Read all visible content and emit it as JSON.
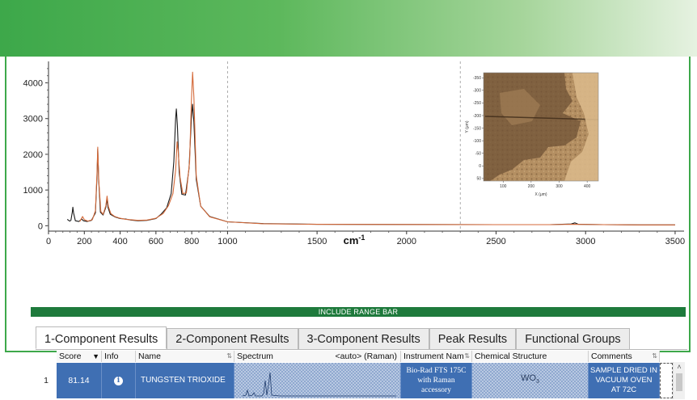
{
  "range_bar_label": "INCLUDE RANGE BAR",
  "tabs": [
    {
      "label": "1-Component Results",
      "active": true
    },
    {
      "label": "2-Component Results",
      "active": false
    },
    {
      "label": "3-Component Results",
      "active": false
    },
    {
      "label": "Peak Results",
      "active": false
    },
    {
      "label": "Functional Groups",
      "active": false
    }
  ],
  "grid": {
    "headers": {
      "score": "Score",
      "info": "Info",
      "name": "Name",
      "spectrum": "Spectrum",
      "spectrum_mode": "<auto> (Raman)",
      "instrument": "Instrument Nam",
      "structure": "Chemical Structure",
      "comments": "Comments"
    },
    "row": {
      "index": "1",
      "score": "81.14",
      "info_glyph": "i",
      "name": "TUNGSTEN TRIOXIDE",
      "instrument_l1": "Bio-Rad FTS 175C",
      "instrument_l2": "with Raman",
      "instrument_l3": "accessory",
      "structure_main": "WO",
      "structure_sub": "3",
      "comments_l1": "SAMPLE DRIED IN",
      "comments_l2": "VACUUM OVEN",
      "comments_l3": "AT 72C"
    }
  },
  "chart_data": {
    "type": "line",
    "xlabel": "cm",
    "xlabel_superscript": "-1",
    "xlim": [
      0,
      3550
    ],
    "ylim": [
      -150,
      4600
    ],
    "x_ticks": [
      0,
      200,
      400,
      600,
      800,
      1000,
      1500,
      2000,
      2500,
      3000,
      3500
    ],
    "y_ticks": [
      0,
      1000,
      2000,
      3000,
      4000
    ],
    "markers_x": [
      1000,
      2300
    ],
    "series": [
      {
        "color": "#1a1a1a",
        "points": [
          [
            105,
            180
          ],
          [
            118,
            130
          ],
          [
            125,
            150
          ],
          [
            133,
            380
          ],
          [
            136,
            520
          ],
          [
            140,
            360
          ],
          [
            150,
            140
          ],
          [
            170,
            120
          ],
          [
            185,
            190
          ],
          [
            195,
            140
          ],
          [
            215,
            120
          ],
          [
            240,
            150
          ],
          [
            262,
            360
          ],
          [
            271,
            1400
          ],
          [
            275,
            2150
          ],
          [
            280,
            1300
          ],
          [
            290,
            380
          ],
          [
            305,
            300
          ],
          [
            320,
            520
          ],
          [
            326,
            760
          ],
          [
            332,
            520
          ],
          [
            345,
            320
          ],
          [
            370,
            250
          ],
          [
            400,
            200
          ],
          [
            430,
            190
          ],
          [
            460,
            160
          ],
          [
            500,
            140
          ],
          [
            550,
            150
          ],
          [
            600,
            200
          ],
          [
            630,
            330
          ],
          [
            660,
            500
          ],
          [
            685,
            900
          ],
          [
            700,
            1800
          ],
          [
            710,
            3000
          ],
          [
            714,
            3270
          ],
          [
            720,
            2800
          ],
          [
            730,
            1500
          ],
          [
            745,
            880
          ],
          [
            765,
            860
          ],
          [
            785,
            1600
          ],
          [
            798,
            3000
          ],
          [
            805,
            3400
          ],
          [
            812,
            2900
          ],
          [
            825,
            1300
          ],
          [
            850,
            550
          ],
          [
            900,
            260
          ],
          [
            1000,
            110
          ],
          [
            1200,
            60
          ],
          [
            1500,
            40
          ],
          [
            2000,
            35
          ],
          [
            2500,
            30
          ],
          [
            2800,
            30
          ],
          [
            2920,
            50
          ],
          [
            2940,
            80
          ],
          [
            2960,
            40
          ],
          [
            3100,
            30
          ],
          [
            3300,
            25
          ],
          [
            3500,
            25
          ]
        ]
      },
      {
        "color": "#d46a3a",
        "points": [
          [
            175,
            120
          ],
          [
            190,
            260
          ],
          [
            200,
            170
          ],
          [
            220,
            130
          ],
          [
            245,
            170
          ],
          [
            262,
            420
          ],
          [
            271,
            1500
          ],
          [
            275,
            2200
          ],
          [
            281,
            1250
          ],
          [
            292,
            400
          ],
          [
            305,
            320
          ],
          [
            320,
            560
          ],
          [
            327,
            830
          ],
          [
            334,
            540
          ],
          [
            348,
            340
          ],
          [
            370,
            260
          ],
          [
            400,
            210
          ],
          [
            430,
            180
          ],
          [
            460,
            170
          ],
          [
            500,
            150
          ],
          [
            550,
            160
          ],
          [
            600,
            210
          ],
          [
            640,
            340
          ],
          [
            670,
            560
          ],
          [
            695,
            900
          ],
          [
            710,
            1550
          ],
          [
            718,
            2350
          ],
          [
            724,
            2100
          ],
          [
            735,
            1350
          ],
          [
            750,
            900
          ],
          [
            770,
            920
          ],
          [
            788,
            1800
          ],
          [
            798,
            3500
          ],
          [
            805,
            4300
          ],
          [
            812,
            3600
          ],
          [
            825,
            1400
          ],
          [
            850,
            550
          ],
          [
            900,
            250
          ],
          [
            1000,
            110
          ],
          [
            1200,
            55
          ],
          [
            1500,
            40
          ],
          [
            2000,
            35
          ],
          [
            2500,
            30
          ],
          [
            2800,
            30
          ],
          [
            2930,
            40
          ],
          [
            3100,
            30
          ],
          [
            3300,
            25
          ],
          [
            3500,
            25
          ]
        ]
      }
    ],
    "inset": {
      "type": "image",
      "xlabel": "X (μm)",
      "ylabel": "Y (μm)",
      "x_ticks": [
        100,
        200,
        300,
        400
      ],
      "y_ticks": [
        -350,
        -300,
        -250,
        -200,
        -150,
        -100,
        -50,
        0,
        50
      ]
    }
  }
}
